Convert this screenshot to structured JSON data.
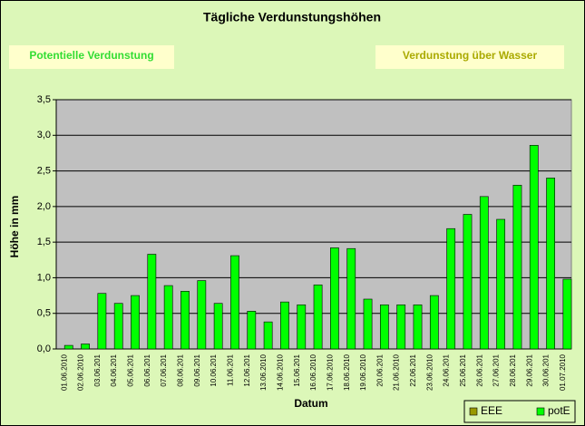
{
  "chart_data": {
    "type": "bar",
    "title": "Tägliche Verdunstungshöhen",
    "buttons": [
      {
        "label": "Potentielle Verdunstung",
        "color": "#33dd33"
      },
      {
        "label": "Verdunstung über Wasser",
        "color": "#aaaa00"
      }
    ],
    "x_label": "Datum",
    "y_label": "Höhe in mm",
    "categories": [
      "01.06.2010",
      "02.06.2010",
      "03.06.201",
      "04.06.201",
      "05.06.201",
      "06.06.201",
      "07.06.201",
      "08.06.201",
      "09.06.201",
      "10.06.201",
      "11.06.201",
      "12.06.201",
      "13.06.2010",
      "14.06.2010",
      "15.06.201",
      "16.06.2010",
      "17.06.2010",
      "18.06.2010",
      "19.06.2010",
      "20.06.201",
      "21.06.2010",
      "22.06.201",
      "23.06.2010",
      "24.06.201",
      "25.06.201",
      "26.06.201",
      "27.06.201",
      "28.06.201",
      "29.06.201",
      "30.06.201",
      "01.07.2010"
    ],
    "series": [
      {
        "name": "EEE",
        "color": "#999900",
        "values": [
          null,
          null,
          null,
          null,
          null,
          null,
          null,
          null,
          null,
          null,
          null,
          null,
          null,
          null,
          null,
          null,
          null,
          null,
          null,
          null,
          null,
          null,
          null,
          null,
          null,
          null,
          null,
          null,
          null,
          null,
          null
        ]
      },
      {
        "name": "potE",
        "color": "#00ff00",
        "values": [
          0.05,
          0.07,
          0.78,
          0.64,
          0.75,
          1.33,
          0.89,
          0.81,
          0.96,
          0.64,
          1.31,
          0.53,
          0.38,
          0.66,
          0.62,
          0.9,
          1.42,
          1.41,
          0.7,
          0.62,
          0.62,
          0.62,
          0.75,
          1.69,
          1.89,
          2.14,
          1.82,
          2.3,
          2.86,
          2.4,
          0.98
        ]
      }
    ],
    "ylim": [
      0,
      3.5
    ],
    "yticks": [
      {
        "value": 0,
        "label": "0,0"
      },
      {
        "value": 0.5,
        "label": "0,5"
      },
      {
        "value": 1,
        "label": "1,0"
      },
      {
        "value": 1.5,
        "label": "1,5"
      },
      {
        "value": 2,
        "label": "2,0"
      },
      {
        "value": 2.5,
        "label": "2,5"
      },
      {
        "value": 3,
        "label": "3,0"
      },
      {
        "value": 3.5,
        "label": "3,5"
      }
    ],
    "grid": true,
    "legend": "bottom-right"
  }
}
